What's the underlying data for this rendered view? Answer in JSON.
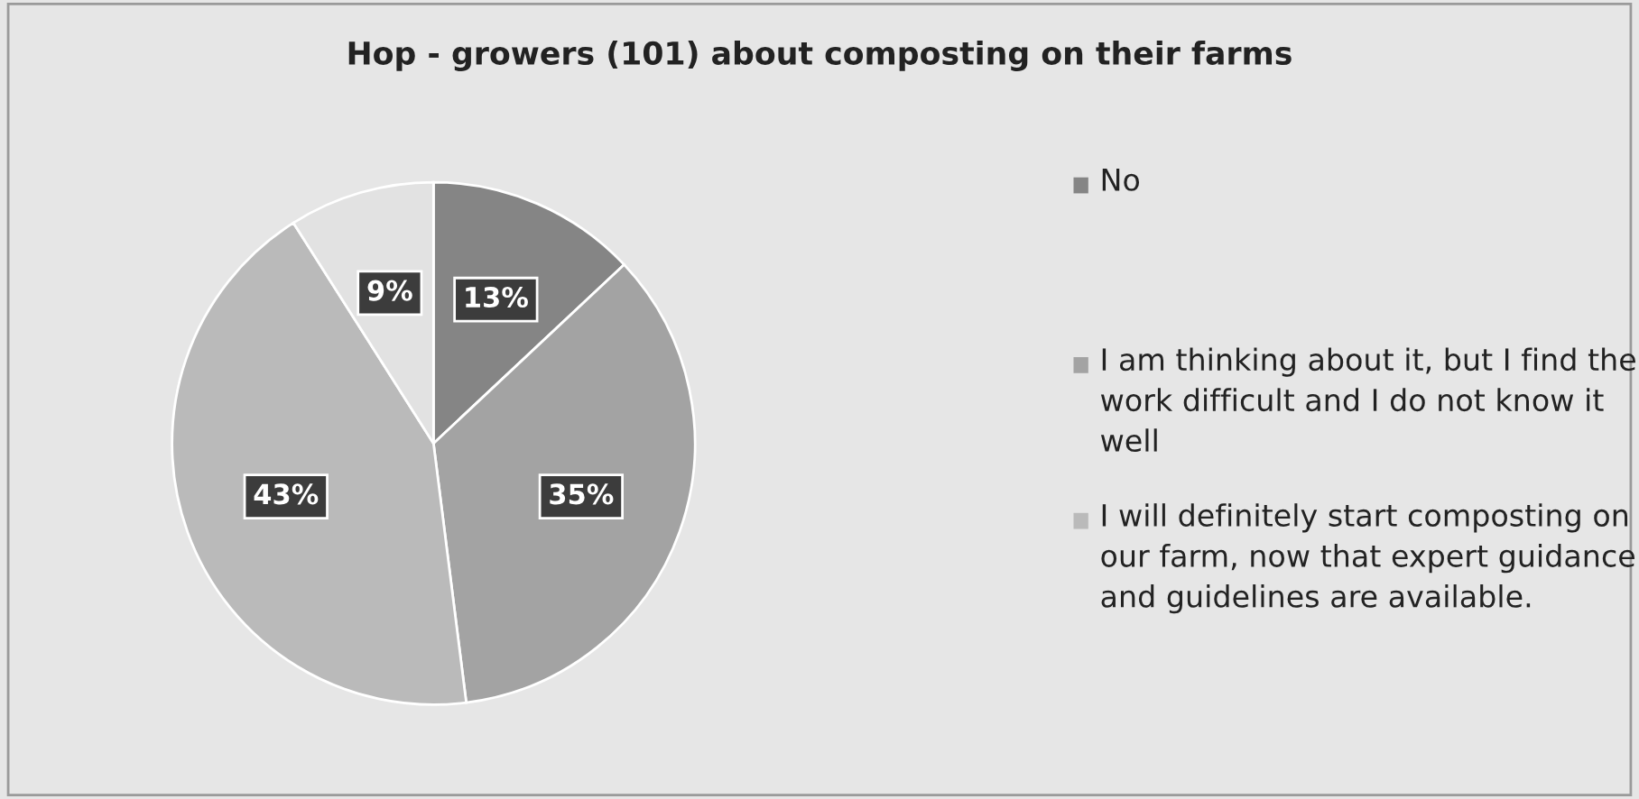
{
  "chart_data": {
    "type": "pie",
    "title": "Hop - growers (101) about composting on their farms",
    "categories": [
      "No",
      "I am thinking about it, but I find the work difficult and I do not know it well",
      "I will definitely start composting on our farm, now that expert guidance and guidelines are available.",
      null
    ],
    "values": [
      13,
      35,
      43,
      9
    ],
    "value_labels": [
      "13%",
      "35%",
      "43%",
      "9%"
    ],
    "colors": [
      "#858585",
      "#a3a3a3",
      "#bababa",
      "#e2e2e2"
    ],
    "legend": "right"
  }
}
